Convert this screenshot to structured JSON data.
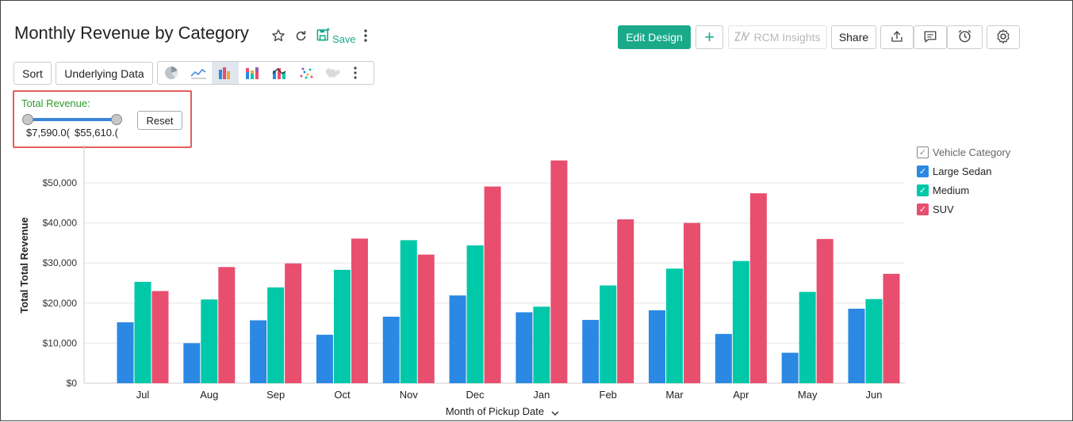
{
  "header": {
    "title": "Monthly Revenue by Category",
    "save_label": "Save",
    "edit_design_label": "Edit Design",
    "add_label": "+",
    "insights_label": "RCM Insights",
    "share_label": "Share"
  },
  "toolbar": {
    "sort_label": "Sort",
    "underlying_data_label": "Underlying Data",
    "chart_types": [
      "pie-chart-icon",
      "line-chart-icon",
      "bar-chart-icon",
      "stacked-bar-icon",
      "combo-chart-icon",
      "scatter-chart-icon",
      "map-chart-icon"
    ]
  },
  "filter": {
    "label": "Total Revenue:",
    "min_value": "$7,590.0(",
    "max_value": "$55,610.(",
    "reset_label": "Reset",
    "range_min": 7590,
    "range_max": 55610
  },
  "colors": {
    "accent": "#1aaa8a",
    "large_sedan": "#2b88e3",
    "medium": "#00c8a8",
    "suv": "#e84e6e"
  },
  "chart_data": {
    "type": "bar",
    "categories": [
      "Jul",
      "Aug",
      "Sep",
      "Oct",
      "Nov",
      "Dec",
      "Jan",
      "Feb",
      "Mar",
      "Apr",
      "May",
      "Jun"
    ],
    "series": [
      {
        "name": "Large Sedan",
        "color": "#2b88e3",
        "values": [
          15200,
          10000,
          15700,
          12100,
          16600,
          21900,
          17700,
          15800,
          18200,
          12300,
          7600,
          18600
        ]
      },
      {
        "name": "Medium",
        "color": "#00c8a8",
        "values": [
          25300,
          20900,
          23900,
          28300,
          35700,
          34400,
          19100,
          24400,
          28600,
          30500,
          22800,
          21000
        ]
      },
      {
        "name": "SUV",
        "color": "#e84e6e",
        "values": [
          23000,
          29000,
          29900,
          36100,
          32100,
          49100,
          55600,
          40900,
          40000,
          47400,
          36000,
          27300
        ]
      }
    ],
    "xlabel": "Month of Pickup Date",
    "ylabel": "Total Total Revenue",
    "ylim": [
      0,
      55000
    ],
    "yticks": [
      0,
      10000,
      20000,
      30000,
      40000,
      50000
    ],
    "ytick_labels": [
      "$0",
      "$10,000",
      "$20,000",
      "$30,000",
      "$40,000",
      "$50,000"
    ],
    "legend_title": "Vehicle Category",
    "legend_position": "right",
    "grid": true
  }
}
